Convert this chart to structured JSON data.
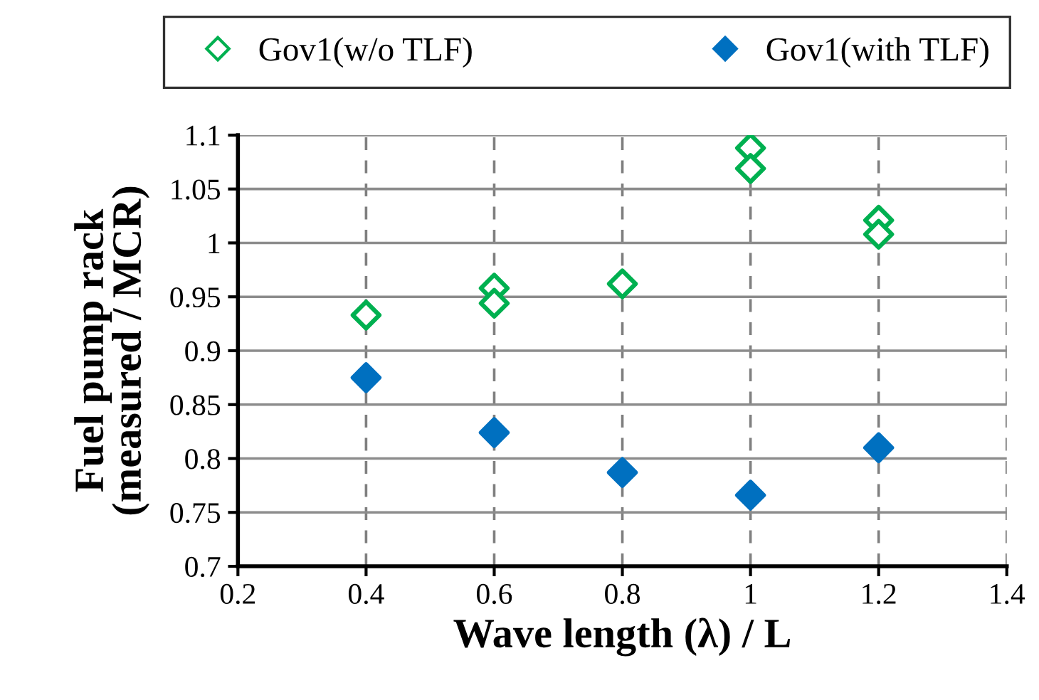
{
  "chart_data": {
    "type": "scatter",
    "xlabel": "Wave length (λ) / L",
    "ylabel": "Fuel pump rack\n(measured / MCR)",
    "series": [
      {
        "name": "Gov1(w/o TLF)",
        "color": "#00b050",
        "x": [
          0.4,
          0.6,
          0.6,
          0.8,
          1.0,
          1.0,
          1.2,
          1.2
        ],
        "values": [
          0.933,
          0.958,
          0.944,
          0.962,
          1.088,
          1.069,
          1.021,
          1.008
        ]
      },
      {
        "name": "Gov1(with TLF)",
        "color": "#0070c0",
        "x": [
          0.4,
          0.6,
          0.8,
          1.0,
          1.2
        ],
        "values": [
          0.875,
          0.824,
          0.787,
          0.766,
          0.81
        ]
      }
    ],
    "marker": "diamond",
    "xlim": [
      0.2,
      1.4
    ],
    "xticks": [
      0.2,
      0.4,
      0.6,
      0.8,
      1,
      1.2,
      1.4
    ],
    "ylim": [
      0.7,
      1.1
    ],
    "yticks": [
      0.7,
      0.75,
      0.8,
      0.85,
      0.9,
      0.95,
      1,
      1.05,
      1.1
    ],
    "grid": true,
    "legend": "top"
  }
}
